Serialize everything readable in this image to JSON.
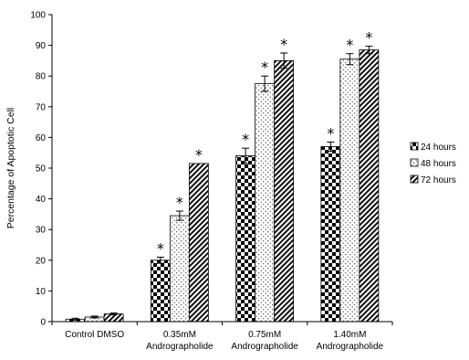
{
  "chart_data": {
    "type": "bar",
    "title": "",
    "xlabel": "",
    "ylabel": "Percentage of Apoptotic Cell",
    "ylim": [
      0,
      100
    ],
    "yticks": [
      0,
      10,
      20,
      30,
      40,
      50,
      60,
      70,
      80,
      90,
      100
    ],
    "grid": false,
    "legend_position": "right",
    "categories": [
      [
        "Control DMSO"
      ],
      [
        "0.35mM",
        "Andrographolide"
      ],
      [
        "0.75mM",
        "Andrographolide"
      ],
      [
        "1.40mM",
        "Andrographolide"
      ]
    ],
    "series": [
      {
        "name": "24 hours",
        "pattern": "checker",
        "values": [
          0.8,
          20,
          54,
          57
        ],
        "errors": [
          0.3,
          1.0,
          2.5,
          1.5
        ]
      },
      {
        "name": "48 hours",
        "pattern": "dots",
        "values": [
          1.5,
          34.5,
          77.5,
          85.5
        ],
        "errors": [
          0.3,
          1.5,
          2.5,
          1.8
        ]
      },
      {
        "name": "72 hours",
        "pattern": "diagonal",
        "values": [
          2.5,
          51.5,
          85,
          88.5
        ],
        "errors": [
          0.3,
          0,
          2.5,
          1.2
        ]
      }
    ],
    "significance_marker": "*",
    "significant": [
      [
        false,
        true,
        true,
        true
      ],
      [
        false,
        true,
        true,
        true
      ],
      [
        false,
        true,
        true,
        true
      ]
    ]
  }
}
